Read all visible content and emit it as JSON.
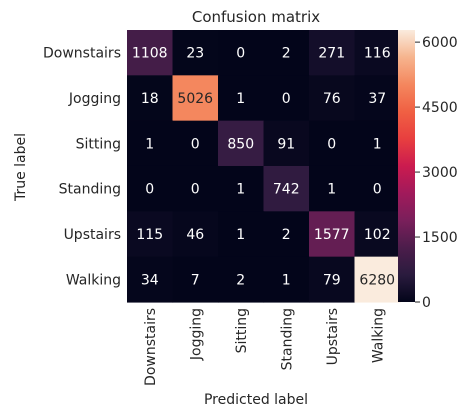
{
  "chart_data": {
    "type": "heatmap",
    "title": "Confusion matrix",
    "xlabel": "Predicted label",
    "ylabel": "True label",
    "x_categories": [
      "Downstairs",
      "Jogging",
      "Sitting",
      "Standing",
      "Upstairs",
      "Walking"
    ],
    "y_categories": [
      "Downstairs",
      "Jogging",
      "Sitting",
      "Standing",
      "Upstairs",
      "Walking"
    ],
    "values": [
      [
        1108,
        23,
        0,
        2,
        271,
        116
      ],
      [
        18,
        5026,
        1,
        0,
        76,
        37
      ],
      [
        1,
        0,
        850,
        91,
        0,
        1
      ],
      [
        0,
        0,
        1,
        742,
        1,
        0
      ],
      [
        115,
        46,
        1,
        2,
        1577,
        102
      ],
      [
        34,
        7,
        2,
        1,
        79,
        6280
      ]
    ],
    "colorbar": {
      "range": [
        0,
        6280
      ],
      "ticks": [
        0,
        1500,
        3000,
        4500,
        6000
      ],
      "colormap": "rocket",
      "colormap_stops": [
        "#03051A",
        "#2A1B3E",
        "#4C1D4B",
        "#7A1F5B",
        "#A11A5B",
        "#CB1B4F",
        "#E83F3F",
        "#F06043",
        "#F4875E",
        "#F6B48E",
        "#FAEBDD"
      ]
    },
    "grid": false
  }
}
